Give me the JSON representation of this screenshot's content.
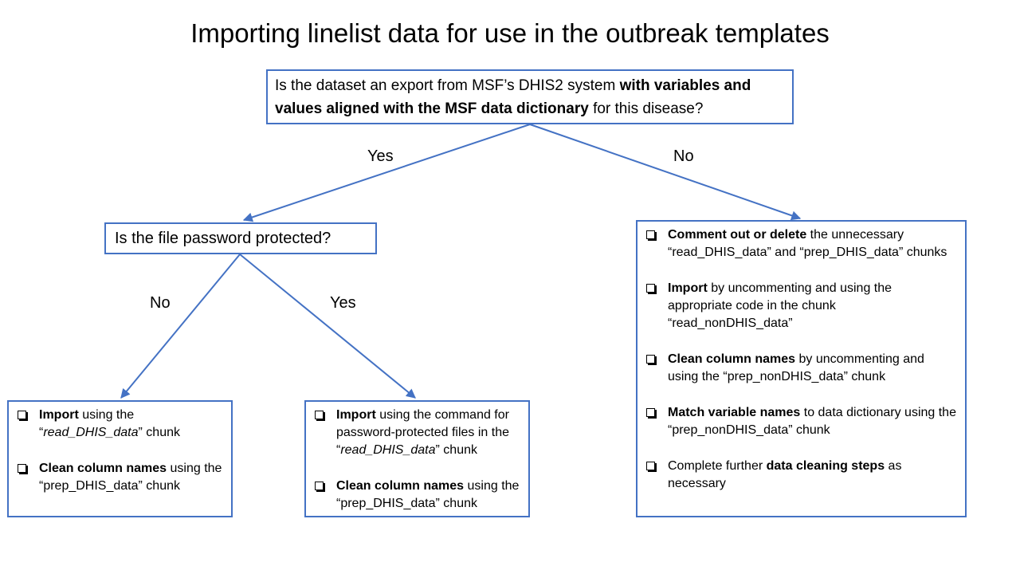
{
  "title": "Importing linelist data for use in the outbreak templates",
  "question1": {
    "p1": "Is the dataset an export from MSF’s DHIS2 system ",
    "b1": "with variables and values aligned with the MSF data dictionary",
    "p2": " for this disease?"
  },
  "question2": {
    "text": "Is the file password protected?"
  },
  "labels": {
    "yes_top": "Yes",
    "no_top": "No",
    "no_left": "No",
    "yes_mid": "Yes"
  },
  "box_dhis_unprotected": {
    "item1": {
      "bold": "Import",
      "t1": " using the “",
      "italic": "read_DHIS_data",
      "t2": "” chunk"
    },
    "item2": {
      "bold": "Clean column names",
      "text": " using the “prep_DHIS_data” chunk"
    }
  },
  "box_dhis_protected": {
    "item1": {
      "bold": "Import",
      "t1": " using the command for password-protected files in the “",
      "italic": "read_DHIS_data",
      "t2": "” chunk"
    },
    "item2": {
      "bold": "Clean column names",
      "text": " using the “prep_DHIS_data” chunk"
    }
  },
  "box_non_dhis": {
    "item1": {
      "bold": "Comment out or delete",
      "text": " the unnecessary “read_DHIS_data” and “prep_DHIS_data” chunks"
    },
    "item2": {
      "bold": "Import",
      "text": " by uncommenting and using the appropriate code in the chunk “read_nonDHIS_data”"
    },
    "item3": {
      "bold": "Clean column names",
      "text": " by uncommenting and using the “prep_nonDHIS_data” chunk"
    },
    "item4": {
      "bold": "Match variable names",
      "text": " to data dictionary using the “prep_nonDHIS_data” chunk"
    },
    "item5": {
      "pre": "Complete further ",
      "bold": "data cleaning steps",
      "post": " as necessary"
    }
  },
  "colors": {
    "border": "#4472c4",
    "arrow": "#4472c4",
    "text": "#000000"
  }
}
